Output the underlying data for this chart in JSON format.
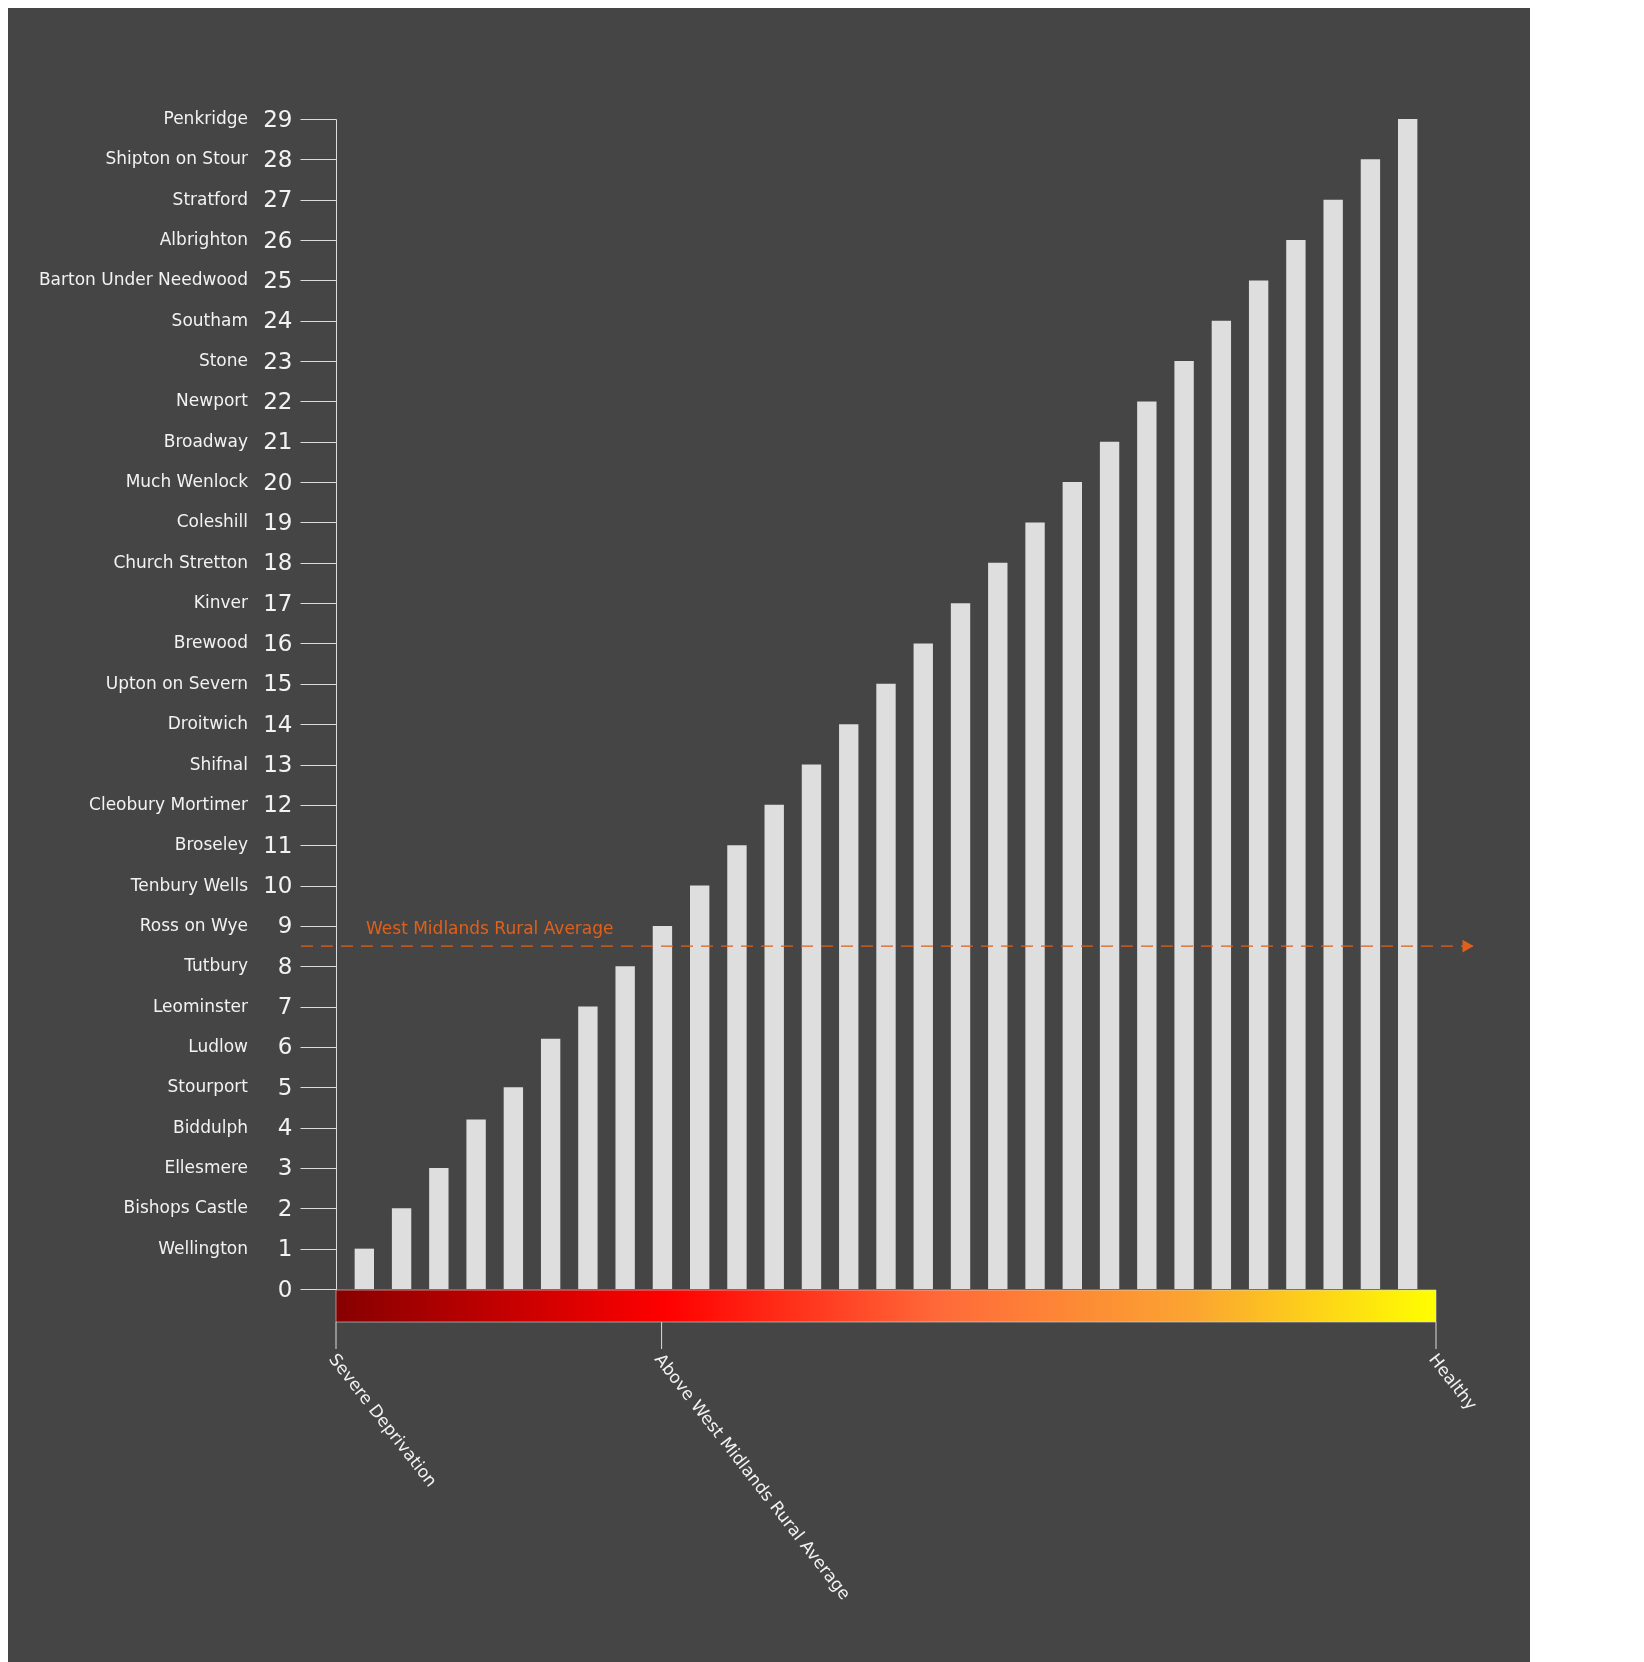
{
  "chart_data": {
    "type": "bar",
    "categories": [
      null,
      null,
      null,
      null,
      null,
      null,
      null,
      null,
      null,
      null,
      null,
      null,
      null,
      null,
      null,
      null,
      null,
      null,
      null,
      null,
      null,
      null,
      null,
      null,
      null,
      null,
      null,
      null,
      null
    ],
    "values": [
      1,
      2,
      3,
      4.2,
      5,
      6.2,
      7,
      8,
      9,
      10,
      11,
      12,
      13,
      14,
      15,
      16,
      17,
      18,
      19,
      20,
      21,
      22,
      23,
      24,
      25,
      26,
      27,
      28,
      29
    ],
    "color": "#dedede",
    "ylim": [
      0,
      29
    ],
    "yticks": [
      0,
      1,
      2,
      3,
      4,
      5,
      6,
      7,
      8,
      9,
      10,
      11,
      12,
      13,
      14,
      15,
      16,
      17,
      18,
      19,
      20,
      21,
      22,
      23,
      24,
      25,
      26,
      27,
      28,
      29
    ],
    "ref_lines": [
      {
        "axis": "y",
        "value": 8.5,
        "label": "West Midlands Rural Average",
        "color": "#e0601a",
        "line_style": "dashed"
      }
    ],
    "annotations": [
      "Wellington",
      "Bishops Castle",
      "Ellesmere",
      "Biddulph",
      "Stourport",
      "Ludlow",
      "Leominster",
      "Tutbury",
      "Ross on Wye",
      "Tenbury Wells",
      "Broseley",
      "Cleobury Mortimer",
      "Shifnal",
      "Droitwich",
      "Upton on Severn",
      "Brewood",
      "Kinver",
      "Church Stretton",
      "Coleshill",
      "Much Wenlock",
      "Broadway",
      "Newport",
      "Stone",
      "Southam",
      "Barton Under Needwood",
      "Albrighton",
      "Stratford",
      "Shipton on Stour",
      "Penkridge",
      "Severe Deprivation",
      "Above West Midlands Rural Average",
      "Healthy"
    ]
  }
}
